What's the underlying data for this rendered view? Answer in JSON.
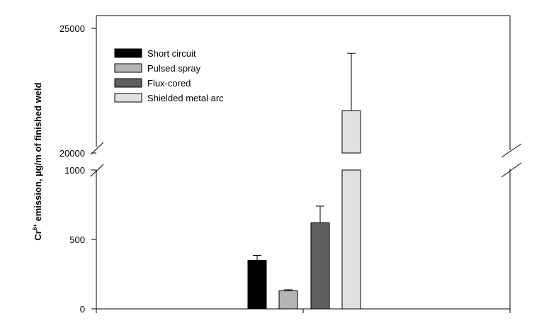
{
  "chart_data": {
    "type": "bar",
    "ylabel_main": "Cr",
    "ylabel_sup": "6+",
    "ylabel_rest": " emission, µg/m of finished weld",
    "y_axis": {
      "broken": true,
      "lower_range": [
        0,
        1000
      ],
      "upper_range": [
        20000,
        25000
      ],
      "lower_ticks": [
        "0",
        "500",
        "1000"
      ],
      "upper_ticks": [
        "20000",
        "25000"
      ]
    },
    "series": [
      {
        "name": "Short circuit",
        "value": 350,
        "error_upper": 385,
        "color": "#000000"
      },
      {
        "name": "Pulsed spray",
        "value": 130,
        "error_upper": 138,
        "color": "#b4b4b4"
      },
      {
        "name": "Flux-cored",
        "value": 620,
        "error_upper": 740,
        "color": "#606060"
      },
      {
        "name": "Shielded metal arc",
        "value": 21700,
        "error_upper": 24000,
        "color": "#e0e0e0"
      }
    ],
    "legend_position": "top-left"
  }
}
